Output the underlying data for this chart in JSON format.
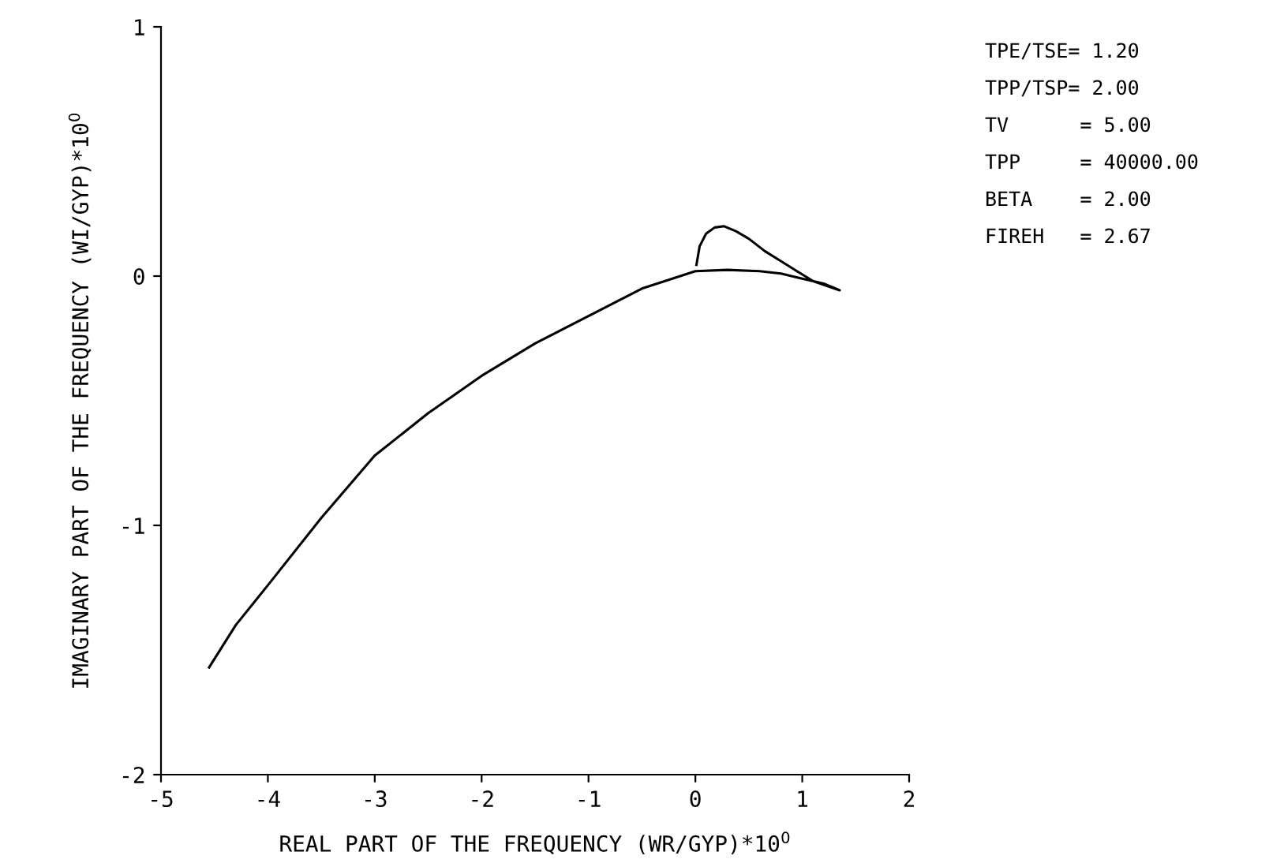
{
  "chart_data": {
    "type": "line",
    "xlabel": "REAL PART OF THE FREQUENCY (WR/GYP)*10$^{0}$",
    "ylabel": "IMAGINARY PART OF THE FREQUENCY (WI/GYP)*10$^{0}$",
    "series": [
      {
        "color": "#000000",
        "x": [
          0.01,
          0.04,
          0.1,
          0.18,
          0.27,
          0.38,
          0.5,
          0.65,
          0.8,
          0.95,
          1.1,
          1.2,
          1.35,
          1.2,
          1.0,
          0.8,
          0.6,
          0.3,
          0.0,
          -0.5,
          -1.0,
          -1.5,
          -2.0,
          -2.5,
          -3.0,
          -3.5,
          -4.0,
          -4.3,
          -4.55
        ],
        "values": [
          0.045,
          0.12,
          0.17,
          0.195,
          0.2,
          0.18,
          0.15,
          0.1,
          0.06,
          0.02,
          -0.02,
          -0.035,
          -0.057,
          -0.03,
          -0.01,
          0.01,
          0.02,
          0.025,
          0.02,
          -0.05,
          -0.16,
          -0.27,
          -0.4,
          -0.55,
          -0.72,
          -0.97,
          -1.24,
          -1.4,
          -1.57
        ]
      }
    ],
    "xlim": [
      -5,
      2
    ],
    "xticks": [
      -5,
      -4,
      -3,
      -2,
      -1,
      0,
      1,
      2
    ],
    "ylim": [
      -2,
      1
    ],
    "yticks": [
      -2,
      -1,
      0,
      1
    ],
    "grid": false,
    "marker": "none",
    "line_style": "solid",
    "annotations": [
      "TPE/TSE= 1.20",
      "TPP/TSP= 2.00",
      "TV      = 5.00",
      "TPP     = 40000.00",
      "BETA    = 2.00",
      "FIREH   = 2.67"
    ]
  }
}
